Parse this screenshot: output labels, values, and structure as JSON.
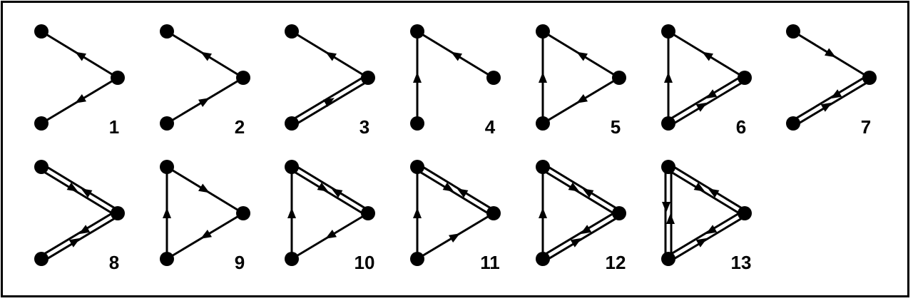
{
  "colors": {
    "ink": "#000000",
    "background": "#ffffff"
  },
  "panels": [
    {
      "label": "1",
      "edges": [
        {
          "from": "top",
          "to": "right",
          "kind": "single",
          "arrow": "to_top"
        },
        {
          "from": "bottom",
          "to": "right",
          "kind": "single",
          "arrow": "to_bottom"
        }
      ]
    },
    {
      "label": "2",
      "edges": [
        {
          "from": "top",
          "to": "right",
          "kind": "single",
          "arrow": "to_top"
        },
        {
          "from": "bottom",
          "to": "right",
          "kind": "single",
          "arrow": "to_right"
        }
      ]
    },
    {
      "label": "3",
      "edges": [
        {
          "from": "top",
          "to": "right",
          "kind": "single",
          "arrow": "to_top"
        },
        {
          "from": "bottom",
          "to": "right",
          "kind": "double",
          "arrow": "to_right"
        }
      ]
    },
    {
      "label": "4",
      "edges": [
        {
          "from": "top",
          "to": "right",
          "kind": "single",
          "arrow": "to_top"
        },
        {
          "from": "bottom",
          "to": "top",
          "kind": "single",
          "arrow": "to_top"
        }
      ]
    },
    {
      "label": "5",
      "edges": [
        {
          "from": "top",
          "to": "right",
          "kind": "single",
          "arrow": "to_top"
        },
        {
          "from": "bottom",
          "to": "right",
          "kind": "single",
          "arrow": "to_bottom"
        },
        {
          "from": "bottom",
          "to": "top",
          "kind": "single",
          "arrow": "to_top"
        }
      ]
    },
    {
      "label": "6",
      "edges": [
        {
          "from": "top",
          "to": "right",
          "kind": "single",
          "arrow": "to_top"
        },
        {
          "from": "bottom",
          "to": "right",
          "kind": "double",
          "arrow": "both"
        },
        {
          "from": "bottom",
          "to": "top",
          "kind": "single",
          "arrow": "to_top"
        }
      ]
    },
    {
      "label": "7",
      "edges": [
        {
          "from": "top",
          "to": "right",
          "kind": "single",
          "arrow": "to_right"
        },
        {
          "from": "bottom",
          "to": "right",
          "kind": "double",
          "arrow": "both"
        }
      ]
    },
    {
      "label": "8",
      "edges": [
        {
          "from": "top",
          "to": "right",
          "kind": "double",
          "arrow": "both"
        },
        {
          "from": "bottom",
          "to": "right",
          "kind": "double",
          "arrow": "both"
        }
      ]
    },
    {
      "label": "9",
      "edges": [
        {
          "from": "top",
          "to": "right",
          "kind": "single",
          "arrow": "to_right"
        },
        {
          "from": "bottom",
          "to": "right",
          "kind": "single",
          "arrow": "to_bottom"
        },
        {
          "from": "bottom",
          "to": "top",
          "kind": "single",
          "arrow": "to_top"
        }
      ]
    },
    {
      "label": "10",
      "edges": [
        {
          "from": "top",
          "to": "right",
          "kind": "double",
          "arrow": "both"
        },
        {
          "from": "bottom",
          "to": "right",
          "kind": "single",
          "arrow": "to_bottom"
        },
        {
          "from": "bottom",
          "to": "top",
          "kind": "single",
          "arrow": "to_top"
        }
      ]
    },
    {
      "label": "11",
      "edges": [
        {
          "from": "top",
          "to": "right",
          "kind": "double",
          "arrow": "both"
        },
        {
          "from": "bottom",
          "to": "right",
          "kind": "single",
          "arrow": "to_right"
        },
        {
          "from": "bottom",
          "to": "top",
          "kind": "single",
          "arrow": "to_top"
        }
      ]
    },
    {
      "label": "12",
      "edges": [
        {
          "from": "top",
          "to": "right",
          "kind": "double",
          "arrow": "both"
        },
        {
          "from": "bottom",
          "to": "right",
          "kind": "double",
          "arrow": "both"
        },
        {
          "from": "bottom",
          "to": "top",
          "kind": "single",
          "arrow": "to_top"
        }
      ]
    },
    {
      "label": "13",
      "edges": [
        {
          "from": "top",
          "to": "right",
          "kind": "double",
          "arrow": "both"
        },
        {
          "from": "bottom",
          "to": "right",
          "kind": "double",
          "arrow": "both"
        },
        {
          "from": "bottom",
          "to": "top",
          "kind": "double",
          "arrow": "both"
        }
      ]
    }
  ]
}
